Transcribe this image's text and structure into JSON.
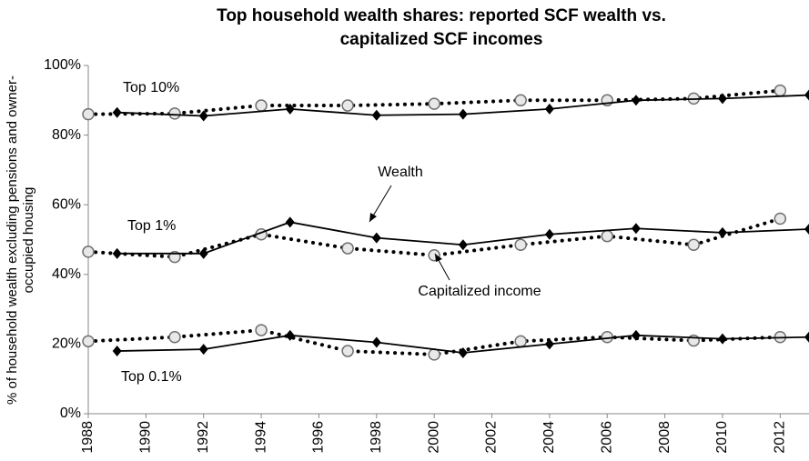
{
  "chart_data": {
    "type": "line",
    "title": [
      "Top household wealth shares: reported SCF wealth vs.",
      "capitalized SCF incomes"
    ],
    "y_label": [
      "% of household wealth excluding pensions and owner-",
      "occupied housing"
    ],
    "xlim": [
      1988,
      2013
    ],
    "xticks": [
      1988,
      1990,
      1992,
      1994,
      1996,
      1998,
      2000,
      2002,
      2004,
      2006,
      2008,
      2010,
      2012
    ],
    "ylim": [
      0,
      100
    ],
    "yticks": [
      {
        "value": 0,
        "label": "0%"
      },
      {
        "value": 20,
        "label": "20%"
      },
      {
        "value": 40,
        "label": "40%"
      },
      {
        "value": 60,
        "label": "60%"
      },
      {
        "value": 80,
        "label": "80%"
      },
      {
        "value": 100,
        "label": "100%"
      }
    ],
    "wealth_x": [
      1989,
      1992,
      1995,
      1998,
      2001,
      2004,
      2007,
      2010,
      2013
    ],
    "income_x": [
      1988,
      1991,
      1994,
      1997,
      2000,
      2003,
      2006,
      2009,
      2012
    ],
    "groups": [
      {
        "label": "Top 10%",
        "wealth": [
          86.5,
          85.5,
          87.5,
          85.7,
          86,
          87.5,
          90,
          90.5,
          91.5
        ],
        "income": [
          86,
          86.2,
          88.5,
          88.5,
          89,
          90,
          90,
          90.5,
          92.8
        ]
      },
      {
        "label": "Top 1%",
        "wealth": [
          46,
          46,
          55,
          50.5,
          48.5,
          51.5,
          53.2,
          52,
          53
        ],
        "income": [
          46.5,
          45,
          51.5,
          47.5,
          45.5,
          48.5,
          51,
          48.5,
          56
        ]
      },
      {
        "label": "Top 0.1%",
        "wealth": [
          18,
          18.5,
          22.5,
          20.5,
          17.5,
          20,
          22.5,
          21.5,
          22
        ],
        "income": [
          20.8,
          22,
          24,
          18,
          17,
          20.8,
          22,
          21,
          22
        ]
      }
    ],
    "annotations": [
      "Wealth",
      "Capitalized income"
    ],
    "wealth_color": "#000000",
    "income_color": "#000000",
    "circle_fill": "#e8e8e8",
    "circle_stroke": "#707070"
  }
}
